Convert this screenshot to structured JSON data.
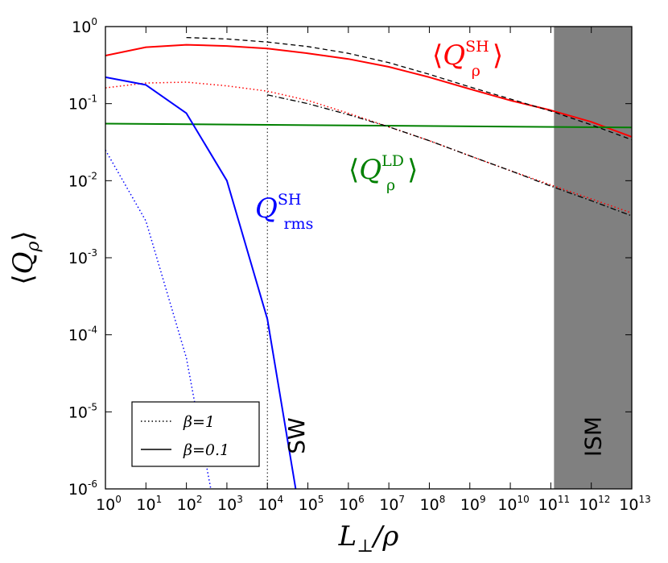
{
  "chart_data": {
    "type": "line",
    "xlabel": "L_⊥/ρ",
    "ylabel": "⟨Q_ρ⟩",
    "xscale": "log",
    "yscale": "log",
    "xlim": [
      1,
      10000000000000.0
    ],
    "ylim": [
      1e-06,
      1
    ],
    "x_tick_labels": [
      "10^0",
      "10^1",
      "10^2",
      "10^3",
      "10^4",
      "10^5",
      "10^6",
      "10^7",
      "10^8",
      "10^9",
      "10^10",
      "10^11",
      "10^12",
      "10^13"
    ],
    "y_tick_labels": [
      "10^-6",
      "10^-5",
      "10^-4",
      "10^-3",
      "10^-2",
      "10^-1",
      "10^0"
    ],
    "grid": false,
    "legend_position": "lower-left",
    "legend": [
      {
        "style": "dotted",
        "label": "β=1"
      },
      {
        "style": "solid",
        "label": "β=0.1"
      }
    ],
    "bands": [
      {
        "label": "ISM",
        "x_range": [
          120000000000.0,
          10000000000000.0
        ],
        "color": "#808080"
      }
    ],
    "vertical_lines": [
      {
        "x": 10000.0,
        "style": "dotted",
        "label": "SW"
      }
    ],
    "annotations": [
      {
        "text": "⟨Q_ρ^SH⟩",
        "main": "⟨Q",
        "sub": "ρ",
        "sup": "SH",
        "close": "⟩",
        "color": "#ff0000"
      },
      {
        "text": "⟨Q_ρ^LD⟩",
        "main": "⟨Q",
        "sub": "ρ",
        "sup": "LD",
        "close": "⟩",
        "color": "#008000"
      },
      {
        "text": "Q_rms^SH",
        "main": "Q",
        "sub": "rms",
        "sup": "SH",
        "close": "",
        "color": "#0000ff"
      }
    ],
    "series": [
      {
        "color": "#ff0000",
        "style": "solid",
        "width": 2,
        "x": [
          1,
          10,
          100,
          1000,
          10000.0,
          100000.0,
          1000000.0,
          10000000.0,
          100000000.0,
          1000000000.0,
          10000000000.0,
          100000000000.0,
          1000000000000.0,
          10000000000000.0
        ],
        "y": [
          0.42,
          0.54,
          0.58,
          0.56,
          0.52,
          0.45,
          0.38,
          0.3,
          0.22,
          0.155,
          0.11,
          0.082,
          0.058,
          0.037
        ]
      },
      {
        "color": "#ff0000",
        "style": "dotted",
        "width": 1.5,
        "x": [
          1,
          10,
          100,
          1000,
          10000.0,
          100000.0,
          1000000.0,
          10000000.0,
          100000000.0,
          1000000000.0,
          10000000000.0,
          100000000000.0,
          1000000000000.0,
          10000000000000.0
        ],
        "y": [
          0.16,
          0.185,
          0.19,
          0.17,
          0.145,
          0.11,
          0.075,
          0.05,
          0.033,
          0.021,
          0.0135,
          0.0088,
          0.0058,
          0.0038
        ]
      },
      {
        "color": "#008000",
        "style": "solid",
        "width": 2,
        "x": [
          1,
          10000000000000.0
        ],
        "y": [
          0.055,
          0.049
        ]
      },
      {
        "color": "#000000",
        "style": "dashed",
        "width": 1.3,
        "x": [
          100,
          1000,
          10000.0,
          100000.0,
          1000000.0,
          10000000.0,
          100000000.0,
          1000000000.0,
          10000000000.0,
          100000000000.0,
          1000000000000.0,
          10000000000000.0
        ],
        "y": [
          0.72,
          0.69,
          0.63,
          0.55,
          0.45,
          0.34,
          0.24,
          0.165,
          0.115,
          0.08,
          0.053,
          0.034
        ]
      },
      {
        "color": "#000000",
        "style": "dashdot",
        "width": 1.3,
        "x": [
          10000.0,
          100000.0,
          1000000.0,
          10000000.0,
          100000000.0,
          1000000000.0,
          10000000000.0,
          100000000000.0,
          1000000000000.0,
          10000000000000.0
        ],
        "y": [
          0.13,
          0.1,
          0.072,
          0.05,
          0.033,
          0.021,
          0.0135,
          0.0085,
          0.0055,
          0.0035
        ]
      },
      {
        "color": "#0000ff",
        "style": "solid",
        "width": 2,
        "x": [
          1,
          10,
          100,
          1000,
          10000.0,
          50000.0
        ],
        "y": [
          0.22,
          0.175,
          0.075,
          0.01,
          0.00016,
          1e-06
        ]
      },
      {
        "color": "#0000ff",
        "style": "dotted",
        "width": 1.5,
        "x": [
          1,
          10,
          100,
          400
        ],
        "y": [
          0.025,
          0.003,
          5e-05,
          1e-06
        ]
      }
    ]
  }
}
